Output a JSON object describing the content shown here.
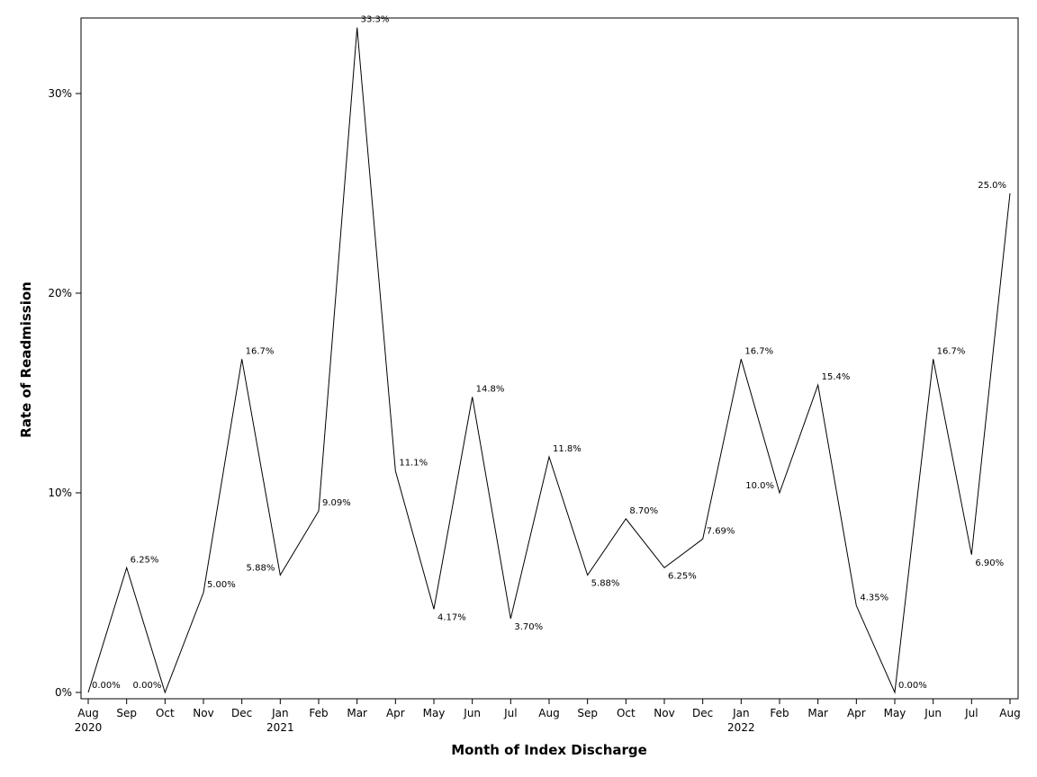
{
  "chart_data": {
    "type": "line",
    "title": "",
    "xlabel": "Month of Index Discharge",
    "ylabel": "Rate of Readmission",
    "ylim": [
      0,
      0.34
    ],
    "yticks": [
      0,
      0.1,
      0.2,
      0.3
    ],
    "ytick_labels": [
      "0%",
      "10%",
      "20%",
      "30%"
    ],
    "grid": false,
    "legend": "none",
    "line_color": "#000000",
    "categories": [
      "Aug",
      "Sep",
      "Oct",
      "Nov",
      "Dec",
      "Jan",
      "Feb",
      "Mar",
      "Apr",
      "May",
      "Jun",
      "Jul",
      "Aug",
      "Sep",
      "Oct",
      "Nov",
      "Dec",
      "Jan",
      "Feb",
      "Mar",
      "Apr",
      "May",
      "Jun",
      "Jul",
      "Aug"
    ],
    "year_labels": [
      "2020",
      "",
      "",
      "",
      "",
      "2021",
      "",
      "",
      "",
      "",
      "",
      "",
      "",
      "",
      "",
      "",
      "",
      "2022",
      "",
      "",
      "",
      "",
      "",
      "",
      ""
    ],
    "values": [
      0.0,
      0.0625,
      0.0,
      0.05,
      0.167,
      0.0588,
      0.0909,
      0.333,
      0.111,
      0.0417,
      0.148,
      0.037,
      0.118,
      0.0588,
      0.087,
      0.0625,
      0.0769,
      0.167,
      0.1,
      0.154,
      0.0435,
      0.0,
      0.167,
      0.069,
      0.25
    ],
    "data_labels": [
      "0.00%",
      "6.25%",
      "0.00%",
      "5.00%",
      "16.7%",
      "5.88%",
      "9.09%",
      "33.3%",
      "11.1%",
      "4.17%",
      "14.8%",
      "3.70%",
      "11.8%",
      "5.88%",
      "8.70%",
      "6.25%",
      "7.69%",
      "16.7%",
      "10.0%",
      "15.4%",
      "4.35%",
      "0.00%",
      "16.7%",
      "6.90%",
      "25.0%"
    ]
  }
}
